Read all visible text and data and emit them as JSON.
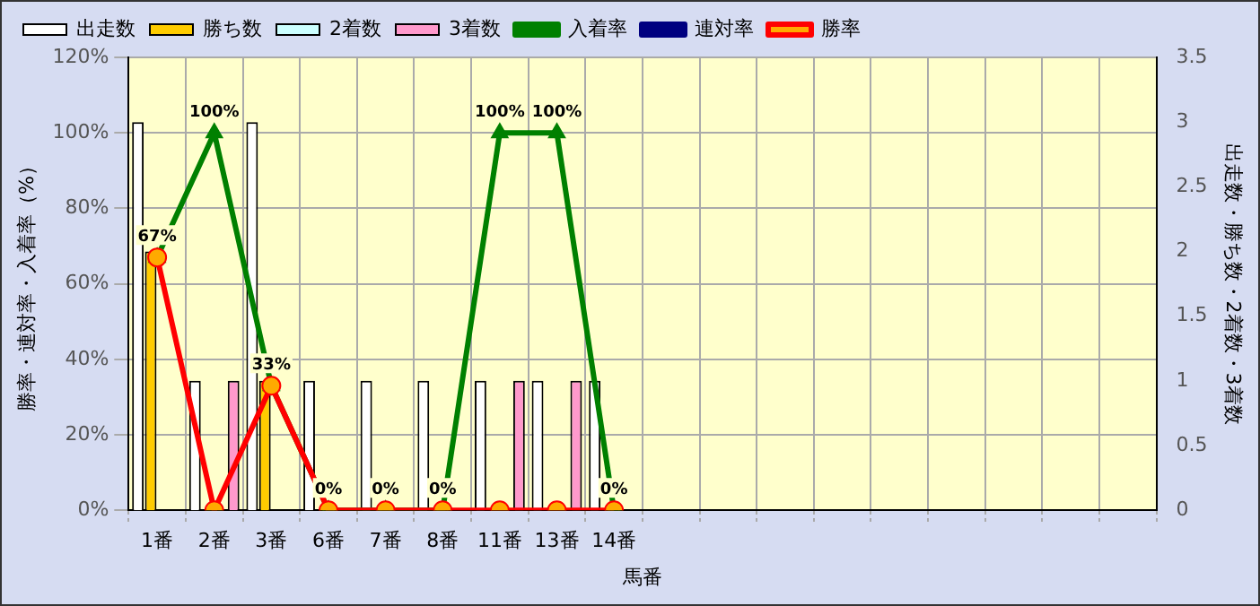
{
  "chart_data": {
    "type": "bar",
    "xlabel": "馬番",
    "ylabel": "勝率・連対率・入着率（%）",
    "y2label": "出走数・勝ち数・2着数・3着数",
    "categories": [
      "1番",
      "2番",
      "3番",
      "6番",
      "7番",
      "8番",
      "11番",
      "13番",
      "14番",
      null,
      null,
      null,
      null,
      null,
      null,
      null,
      null,
      null
    ],
    "series": [
      {
        "name": "出走数",
        "axis": "y2",
        "color": "#ffffff",
        "values": [
          3,
          1,
          3,
          1,
          1,
          1,
          1,
          1,
          1,
          null,
          null,
          null,
          null,
          null,
          null,
          null,
          null,
          null
        ]
      },
      {
        "name": "勝ち数",
        "axis": "y2",
        "color": "#ffcc00",
        "values": [
          2,
          0,
          1,
          0,
          0,
          0,
          0,
          0,
          0,
          null,
          null,
          null,
          null,
          null,
          null,
          null,
          null,
          null
        ]
      },
      {
        "name": "2着数",
        "axis": "y2",
        "color": "#ccffff",
        "values": [
          0,
          0,
          0,
          0,
          0,
          0,
          0,
          0,
          0,
          null,
          null,
          null,
          null,
          null,
          null,
          null,
          null,
          null
        ]
      },
      {
        "name": "3着数",
        "axis": "y2",
        "color": "#ff99cc",
        "values": [
          0,
          1,
          0,
          0,
          0,
          0,
          1,
          1,
          0,
          null,
          null,
          null,
          null,
          null,
          null,
          null,
          null,
          null
        ]
      },
      {
        "name": "入着率",
        "type": "line",
        "color": "#008000",
        "marker": "triangle",
        "values": [
          67,
          100,
          33,
          0,
          0,
          0,
          100,
          100,
          0,
          null,
          null,
          null,
          null,
          null,
          null,
          null,
          null,
          null
        ],
        "value_labels": [
          "67%",
          "100%",
          "33%",
          "0%",
          "0%",
          "0%",
          "100%",
          "100%",
          "0%",
          null,
          null,
          null,
          null,
          null,
          null,
          null,
          null,
          null
        ]
      },
      {
        "name": "連対率",
        "type": "line",
        "color": "#000080",
        "marker": "diamond",
        "values": [
          null,
          null,
          null,
          null,
          null,
          null,
          null,
          null,
          null,
          null,
          null,
          null,
          null,
          null,
          null,
          null,
          null,
          null
        ]
      },
      {
        "name": "勝率",
        "type": "line",
        "color": "#ff0000",
        "marker": "circle",
        "values": [
          67,
          0,
          33,
          0,
          0,
          0,
          0,
          0,
          0,
          null,
          null,
          null,
          null,
          null,
          null,
          null,
          null,
          null
        ]
      }
    ],
    "ylim": [
      0,
      120
    ],
    "yticks": [
      {
        "value": 0,
        "label": "0%"
      },
      {
        "value": 20,
        "label": "20%"
      },
      {
        "value": 40,
        "label": "40%"
      },
      {
        "value": 60,
        "label": "60%"
      },
      {
        "value": 80,
        "label": "80%"
      },
      {
        "value": 100,
        "label": "100%"
      },
      {
        "value": 120,
        "label": "120%"
      }
    ],
    "y2lim": [
      0,
      3.5
    ],
    "y2ticks": [
      0,
      0.5,
      1,
      1.5,
      2,
      2.5,
      3,
      3.5
    ],
    "grid": true,
    "legend": "top"
  }
}
